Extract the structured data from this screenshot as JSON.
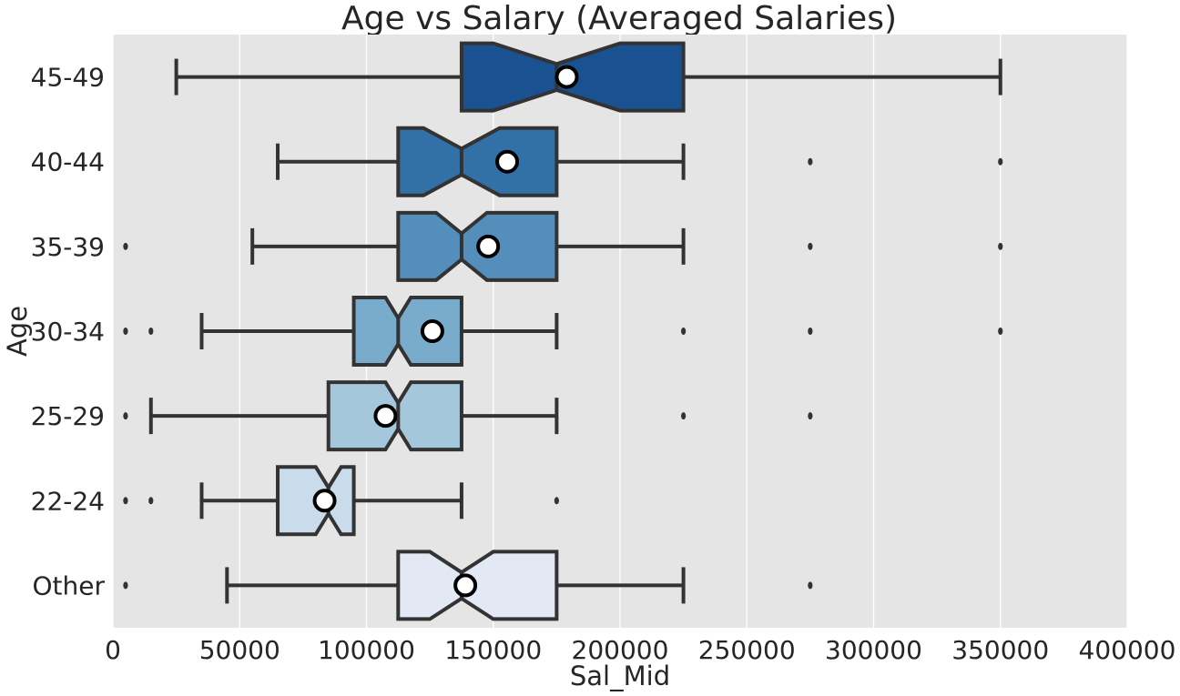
{
  "chart_data": {
    "type": "box",
    "orientation": "horizontal",
    "notched": true,
    "title": "Age vs Salary (Averaged Salaries)",
    "xlabel": "Sal_Mid",
    "ylabel": "Age",
    "xlim": [
      0,
      400000
    ],
    "xticks": [
      0,
      50000,
      100000,
      150000,
      200000,
      250000,
      300000,
      350000,
      400000
    ],
    "xtick_labels": [
      "0",
      "50000",
      "100000",
      "150000",
      "200000",
      "250000",
      "300000",
      "350000",
      "400000"
    ],
    "grid": "vertical",
    "categories": [
      "45-49",
      "40-44",
      "35-39",
      "30-34",
      "25-29",
      "22-24",
      "Other"
    ],
    "boxes": [
      {
        "category": "45-49",
        "whisker_low": 25000,
        "q1": 137500,
        "notch_low": 150000,
        "median": 175000,
        "notch_high": 200000,
        "q3": 225000,
        "whisker_high": 350000,
        "mean": 179000,
        "outliers": [],
        "color": "#1a5191"
      },
      {
        "category": "40-44",
        "whisker_low": 65000,
        "q1": 112500,
        "notch_low": 122500,
        "median": 137500,
        "notch_high": 152500,
        "q3": 175000,
        "whisker_high": 225000,
        "mean": 155500,
        "outliers": [
          275000,
          350000
        ],
        "color": "#3271a8"
      },
      {
        "category": "35-39",
        "whisker_low": 55000,
        "q1": 112500,
        "notch_low": 127500,
        "median": 137500,
        "notch_high": 147500,
        "q3": 175000,
        "whisker_high": 225000,
        "mean": 148000,
        "outliers": [
          5000,
          275000,
          350000
        ],
        "color": "#548ebb"
      },
      {
        "category": "30-34",
        "whisker_low": 35000,
        "q1": 95000,
        "notch_low": 107500,
        "median": 112500,
        "notch_high": 117500,
        "q3": 137500,
        "whisker_high": 175000,
        "mean": 126000,
        "outliers": [
          5000,
          15000,
          225000,
          275000,
          350000
        ],
        "color": "#78abcc"
      },
      {
        "category": "25-29",
        "whisker_low": 15000,
        "q1": 85000,
        "notch_low": 107500,
        "median": 112500,
        "notch_high": 117500,
        "q3": 137500,
        "whisker_high": 175000,
        "mean": 107500,
        "outliers": [
          5000,
          225000,
          275000
        ],
        "color": "#a4c7dc"
      },
      {
        "category": "22-24",
        "whisker_low": 35000,
        "q1": 65000,
        "notch_low": 80000,
        "median": 85000,
        "notch_high": 90000,
        "q3": 95000,
        "whisker_high": 137500,
        "mean": 83500,
        "outliers": [
          5000,
          15000,
          175000
        ],
        "color": "#cadbec"
      },
      {
        "category": "Other",
        "whisker_low": 45000,
        "q1": 112500,
        "notch_low": 125000,
        "median": 137500,
        "notch_high": 150000,
        "q3": 175000,
        "whisker_high": 225000,
        "mean": 139000,
        "outliers": [
          5000,
          275000
        ],
        "color": "#e2e9f4"
      }
    ],
    "colors": {
      "plot_background": "#e5e5e5",
      "gridline": "#ffffff",
      "stroke": "#333333",
      "mean_marker_fill": "#ffffff",
      "mean_marker_edge": "#000000"
    }
  }
}
